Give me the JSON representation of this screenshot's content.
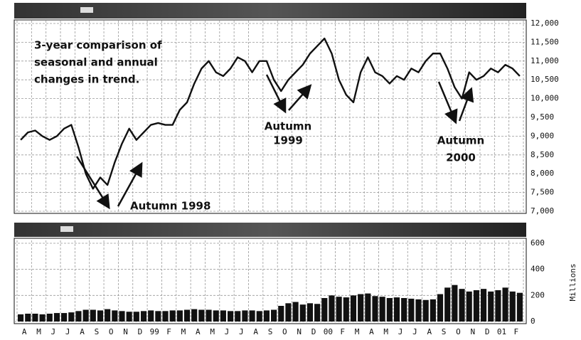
{
  "chart_data": [
    {
      "type": "line",
      "color": "#111111",
      "grid": true,
      "ylim": [
        7000,
        12000
      ],
      "yticks": [
        {
          "value": 7000,
          "label": "7,000"
        },
        {
          "value": 7500,
          "label": "7,500"
        },
        {
          "value": 8000,
          "label": "8,000"
        },
        {
          "value": 8500,
          "label": "8,500"
        },
        {
          "value": 9000,
          "label": "9,000"
        },
        {
          "value": 9500,
          "label": "9,500"
        },
        {
          "value": 10000,
          "label": "10,000"
        },
        {
          "value": 10500,
          "label": "10,500"
        },
        {
          "value": 11000,
          "label": "11,000"
        },
        {
          "value": 11500,
          "label": "11,500"
        },
        {
          "value": 12000,
          "label": "12,000"
        }
      ],
      "values": [
        8900,
        9100,
        9150,
        9000,
        8900,
        9000,
        9200,
        9300,
        8700,
        8000,
        7600,
        7900,
        7700,
        8300,
        8800,
        9200,
        8900,
        9100,
        9300,
        9350,
        9300,
        9300,
        9700,
        9900,
        10400,
        10800,
        11000,
        10700,
        10600,
        10800,
        11100,
        11000,
        10700,
        11000,
        11000,
        10500,
        10200,
        10500,
        10700,
        10900,
        11200,
        11400,
        11600,
        11200,
        10500,
        10100,
        9900,
        10700,
        11100,
        10700,
        10600,
        10400,
        10600,
        10500,
        10800,
        10700,
        11000,
        11200,
        11200,
        10800,
        10300,
        10000,
        10700,
        10500,
        10600,
        10800,
        10700,
        10900,
        10800,
        10600
      ],
      "annotations": [
        {
          "text": [
            "3-year comparison of",
            "seasonal and annual",
            "changes in trend."
          ]
        },
        {
          "text": [
            "Autumn 1998"
          ]
        },
        {
          "text": [
            "Autumn",
            "1999"
          ]
        },
        {
          "text": [
            "Autumn",
            "2000"
          ]
        }
      ]
    },
    {
      "type": "bar",
      "color": "#111111",
      "grid": true,
      "y_label": "Millions",
      "ylim": [
        0,
        600
      ],
      "yticks": [
        0,
        200,
        400,
        600
      ],
      "categories": [
        "A",
        null,
        "M",
        null,
        "J",
        null,
        "J",
        null,
        "A",
        null,
        "S",
        null,
        "O",
        null,
        "N",
        null,
        "D",
        null,
        "99",
        null,
        "F",
        null,
        "M",
        null,
        "A",
        null,
        "M",
        null,
        "J",
        null,
        "J",
        null,
        "A",
        null,
        "S",
        null,
        "O",
        null,
        "N",
        null,
        "D",
        null,
        "00",
        null,
        "F",
        null,
        "M",
        null,
        "A",
        null,
        "M",
        null,
        "J",
        null,
        "J",
        null,
        "A",
        null,
        "S",
        null,
        "O",
        null,
        "N",
        null,
        "D",
        null,
        "01",
        null,
        "F",
        null
      ],
      "values": [
        55,
        60,
        60,
        55,
        60,
        65,
        65,
        70,
        80,
        90,
        90,
        85,
        95,
        85,
        80,
        75,
        75,
        80,
        85,
        80,
        80,
        85,
        85,
        90,
        95,
        90,
        90,
        85,
        85,
        80,
        80,
        85,
        85,
        80,
        85,
        90,
        120,
        140,
        150,
        130,
        140,
        135,
        180,
        200,
        190,
        185,
        200,
        210,
        215,
        195,
        190,
        180,
        185,
        180,
        175,
        170,
        165,
        170,
        210,
        260,
        280,
        250,
        230,
        240,
        250,
        230,
        240,
        260,
        230,
        220
      ]
    }
  ]
}
